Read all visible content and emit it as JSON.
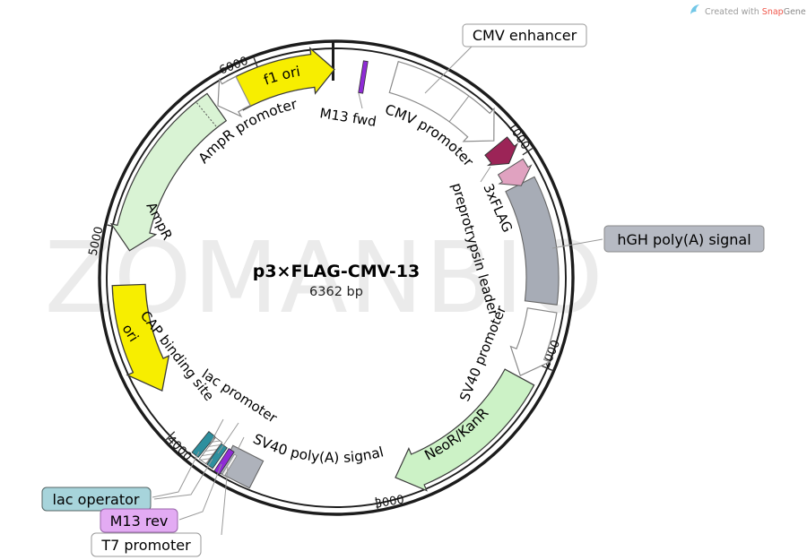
{
  "header": {
    "credit": {
      "prefix": "Created with ",
      "brand_snap": "Snap",
      "brand_gene": "Gene®"
    }
  },
  "plasmid": {
    "name": "p3×FLAG-CMV-13",
    "size_label": "6362 bp"
  },
  "watermark": "ZOMANBIO",
  "ticks": [
    "1000",
    "2000",
    "3000",
    "4000",
    "5000",
    "6000"
  ],
  "features": {
    "cmv_enhancer": "CMV enhancer",
    "cmv_promoter": "CMV promoter",
    "m13_fwd": "M13 fwd",
    "flag3x": "3xFLAG",
    "preprotrypsin": "preprotrypsin leader",
    "hgh_polya": "hGH poly(A) signal",
    "sv40_promoter": "SV40 promoter",
    "neor_kanr": "NeoR/KanR",
    "sv40_polya": "SV40 poly(A) signal",
    "lac_operator": "lac operator",
    "m13_rev": "M13 rev",
    "t7_promoter": "T7 promoter",
    "lac_promoter": "lac promoter",
    "cap_binding": "CAP binding site",
    "ori": "ori",
    "ampr": "AmpR",
    "ampr_promoter": "AmpR promoter",
    "f1_ori": "f1 ori"
  },
  "colors": {
    "yellow": "#f7ee00",
    "ampr_green": "#d9f3d4",
    "neor_green": "#ccf2c6",
    "gray": "#a7acb6",
    "gray_block": "#aeb2bb",
    "maroon": "#9c2457",
    "pink": "#e0a2c0",
    "purple": "#8f2bd6",
    "teal": "#2e8f9e",
    "white_arrow": "#ffffff",
    "callout_gray": "#b6bac3",
    "callout_teal": "#a7d4db",
    "callout_violet": "#e3abf3",
    "snapgene_orange": "#f0564a",
    "snapgene_blue": "#72c7e7"
  }
}
